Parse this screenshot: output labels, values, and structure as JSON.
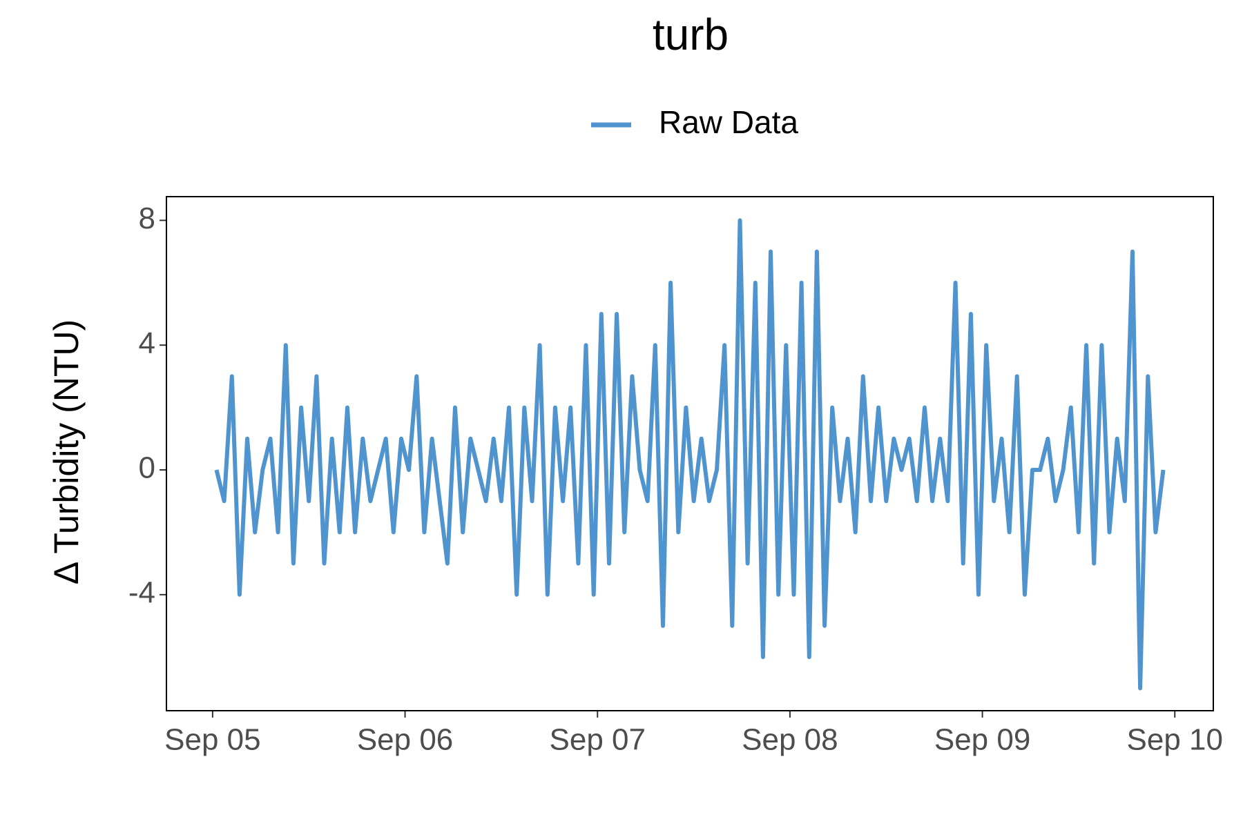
{
  "chart_data": {
    "type": "line",
    "title": "turb",
    "y_label": "Δ Turbidity (NTU)",
    "x": [
      0.02,
      0.06,
      0.1,
      0.14,
      0.18,
      0.22,
      0.26,
      0.3,
      0.34,
      0.38,
      0.42,
      0.46,
      0.5,
      0.54,
      0.58,
      0.62,
      0.66,
      0.7,
      0.74,
      0.78,
      0.82,
      0.86,
      0.9,
      0.94,
      0.98,
      1.02,
      1.06,
      1.1,
      1.14,
      1.18,
      1.22,
      1.26,
      1.3,
      1.34,
      1.38,
      1.42,
      1.46,
      1.5,
      1.54,
      1.58,
      1.62,
      1.66,
      1.7,
      1.74,
      1.78,
      1.82,
      1.86,
      1.9,
      1.94,
      1.98,
      2.02,
      2.06,
      2.1,
      2.14,
      2.18,
      2.22,
      2.26,
      2.3,
      2.34,
      2.38,
      2.42,
      2.46,
      2.5,
      2.54,
      2.58,
      2.62,
      2.66,
      2.7,
      2.74,
      2.78,
      2.82,
      2.86,
      2.9,
      2.94,
      2.98,
      3.02,
      3.06,
      3.1,
      3.14,
      3.18,
      3.22,
      3.26,
      3.3,
      3.34,
      3.38,
      3.42,
      3.46,
      3.5,
      3.54,
      3.58,
      3.62,
      3.66,
      3.7,
      3.74,
      3.78,
      3.82,
      3.86,
      3.9,
      3.94,
      3.98,
      4.02,
      4.06,
      4.1,
      4.14,
      4.18,
      4.22,
      4.26,
      4.3,
      4.34,
      4.38,
      4.42,
      4.46,
      4.5,
      4.54,
      4.58,
      4.62,
      4.66,
      4.7,
      4.74,
      4.78,
      4.82,
      4.86,
      4.9,
      4.94
    ],
    "series": [
      {
        "name": "Raw Data",
        "color": "#5094cf",
        "values": [
          0,
          -1,
          3,
          -4,
          1,
          -2,
          0,
          1,
          -2,
          4,
          -3,
          2,
          -1,
          3,
          -3,
          1,
          -2,
          2,
          -2,
          1,
          -1,
          0,
          1,
          -2,
          1,
          0,
          3,
          -2,
          1,
          -1,
          -3,
          2,
          -2,
          1,
          0,
          -1,
          1,
          -1,
          2,
          -4,
          2,
          -1,
          4,
          -4,
          2,
          -1,
          2,
          -3,
          4,
          -4,
          5,
          -3,
          5,
          -2,
          3,
          0,
          -1,
          4,
          -5,
          6,
          -2,
          2,
          -1,
          1,
          -1,
          0,
          4,
          -5,
          8,
          -3,
          6,
          -6,
          7,
          -4,
          4,
          -4,
          6,
          -6,
          7,
          -5,
          2,
          -1,
          1,
          -2,
          3,
          -1,
          2,
          -1,
          1,
          0,
          1,
          -1,
          2,
          -1,
          1,
          -1,
          6,
          -3,
          5,
          -4,
          4,
          -1,
          1,
          -2,
          3,
          -4,
          0,
          0,
          1,
          -1,
          0,
          2,
          -2,
          4,
          -3,
          4,
          -2,
          1,
          -1,
          7,
          -7,
          3,
          -2,
          0
        ]
      }
    ],
    "xlim": [
      -0.24,
      5.2
    ],
    "xticks": [
      {
        "value": 0,
        "label": "Sep 05"
      },
      {
        "value": 1,
        "label": "Sep 06"
      },
      {
        "value": 2,
        "label": "Sep 07"
      },
      {
        "value": 3,
        "label": "Sep 08"
      },
      {
        "value": 4,
        "label": "Sep 09"
      },
      {
        "value": 5,
        "label": "Sep 10"
      }
    ],
    "ylim": [
      -7.72,
      8.76
    ],
    "yticks": [
      -4,
      0,
      4,
      8
    ],
    "grid": false,
    "legend": "top"
  }
}
